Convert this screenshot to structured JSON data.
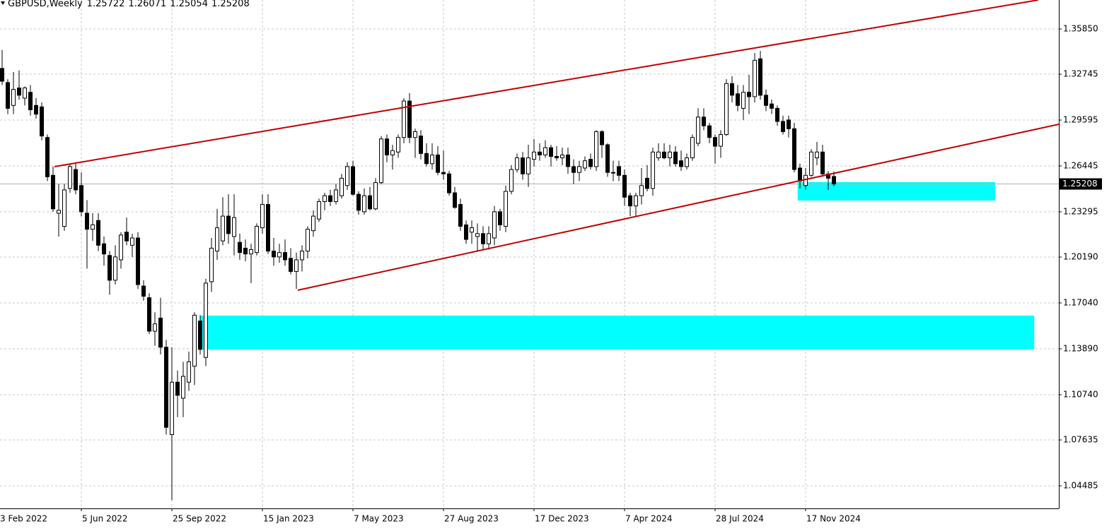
{
  "chart_data": {
    "type": "candlestick",
    "title": "GBPUSD,Weekly",
    "open": [
      1.3314,
      1.3217,
      1.306,
      1.318,
      1.311,
      1.315,
      1.306,
      1.305,
      1.284,
      1.258,
      1.232,
      1.223,
      1.249,
      1.262,
      1.251,
      1.232,
      1.221,
      1.227,
      1.211,
      1.203,
      1.186,
      1.2,
      1.219,
      1.21,
      1.215,
      1.182,
      1.174,
      1.151,
      1.16,
      1.14,
      1.08,
      1.116,
      1.105,
      1.116,
      1.127,
      1.158,
      1.133,
      1.185,
      1.206,
      1.213,
      1.23,
      1.216,
      1.212,
      1.208,
      1.204,
      1.205,
      1.222,
      1.238,
      1.206,
      1.202,
      1.205,
      1.201,
      1.192,
      1.2,
      1.206,
      1.22,
      1.228,
      1.24,
      1.244,
      1.24,
      1.244,
      1.251,
      1.264,
      1.245,
      1.233,
      1.244,
      1.235,
      1.253,
      1.283,
      1.272,
      1.274,
      1.284,
      1.309,
      1.284,
      1.285,
      1.273,
      1.266,
      1.272,
      1.26,
      1.259,
      1.246,
      1.238,
      1.224,
      1.219,
      1.216,
      1.218,
      1.211,
      1.215,
      1.233,
      1.223,
      1.247,
      1.262,
      1.27,
      1.259,
      1.269,
      1.274,
      1.272,
      1.277,
      1.271,
      1.27,
      1.272,
      1.264,
      1.26,
      1.263,
      1.269,
      1.264,
      1.288,
      1.279,
      1.26,
      1.264,
      1.258,
      1.244,
      1.237,
      1.244,
      1.256,
      1.249,
      1.27,
      1.274,
      1.27,
      1.274,
      1.268,
      1.264,
      1.27,
      1.28,
      1.298,
      1.292,
      1.284,
      1.278,
      1.286,
      1.321,
      1.314,
      1.304,
      1.315,
      1.312,
      1.338,
      1.313,
      1.307,
      1.304,
      1.295,
      1.296,
      1.29,
      1.263,
      1.251,
      1.258,
      1.27,
      1.274,
      1.259,
      1.25722
    ],
    "high": [
      1.344,
      1.324,
      1.329,
      1.33,
      1.319,
      1.32,
      1.311,
      1.308,
      1.286,
      1.264,
      1.252,
      1.252,
      1.266,
      1.267,
      1.26,
      1.241,
      1.232,
      1.232,
      1.216,
      1.206,
      1.21,
      1.219,
      1.229,
      1.218,
      1.219,
      1.186,
      1.177,
      1.164,
      1.174,
      1.145,
      1.14,
      1.124,
      1.13,
      1.137,
      1.164,
      1.162,
      1.187,
      1.215,
      1.235,
      1.243,
      1.245,
      1.245,
      1.218,
      1.214,
      1.211,
      1.225,
      1.245,
      1.245,
      1.215,
      1.211,
      1.214,
      1.208,
      1.205,
      1.21,
      1.223,
      1.234,
      1.242,
      1.246,
      1.248,
      1.252,
      1.259,
      1.267,
      1.268,
      1.247,
      1.249,
      1.25,
      1.256,
      1.285,
      1.286,
      1.279,
      1.286,
      1.311,
      1.3145,
      1.29,
      1.289,
      1.28,
      1.28,
      1.278,
      1.275,
      1.261,
      1.25,
      1.242,
      1.227,
      1.227,
      1.225,
      1.223,
      1.223,
      1.237,
      1.235,
      1.251,
      1.265,
      1.273,
      1.274,
      1.279,
      1.283,
      1.28,
      1.282,
      1.279,
      1.278,
      1.277,
      1.277,
      1.269,
      1.268,
      1.271,
      1.273,
      1.289,
      1.289,
      1.28,
      1.268,
      1.268,
      1.262,
      1.246,
      1.246,
      1.263,
      1.265,
      1.277,
      1.28,
      1.28,
      1.279,
      1.278,
      1.275,
      1.273,
      1.286,
      1.304,
      1.304,
      1.294,
      1.286,
      1.289,
      1.324,
      1.326,
      1.32,
      1.32,
      1.327,
      1.342,
      1.3434,
      1.317,
      1.31,
      1.306,
      1.299,
      1.299,
      1.294,
      1.266,
      1.263,
      1.276,
      1.281,
      1.279,
      1.261,
      1.26071
    ],
    "low": [
      1.32,
      1.3,
      1.3,
      1.31,
      1.306,
      1.299,
      1.297,
      1.282,
      1.254,
      1.233,
      1.216,
      1.22,
      1.246,
      1.245,
      1.23,
      1.194,
      1.213,
      1.206,
      1.196,
      1.176,
      1.183,
      1.194,
      1.21,
      1.202,
      1.18,
      1.172,
      1.149,
      1.141,
      1.135,
      1.08,
      1.035,
      1.092,
      1.092,
      1.11,
      1.114,
      1.135,
      1.127,
      1.178,
      1.2,
      1.21,
      1.211,
      1.203,
      1.2,
      1.199,
      1.184,
      1.203,
      1.218,
      1.204,
      1.196,
      1.198,
      1.196,
      1.19,
      1.18,
      1.192,
      1.201,
      1.216,
      1.226,
      1.234,
      1.237,
      1.238,
      1.242,
      1.248,
      1.244,
      1.231,
      1.231,
      1.234,
      1.234,
      1.252,
      1.267,
      1.262,
      1.27,
      1.28,
      1.28,
      1.27,
      1.269,
      1.264,
      1.262,
      1.258,
      1.255,
      1.244,
      1.235,
      1.22,
      1.211,
      1.211,
      1.206,
      1.207,
      1.207,
      1.21,
      1.22,
      1.219,
      1.245,
      1.26,
      1.255,
      1.25,
      1.264,
      1.268,
      1.27,
      1.264,
      1.268,
      1.265,
      1.259,
      1.252,
      1.254,
      1.261,
      1.262,
      1.261,
      1.27,
      1.257,
      1.254,
      1.254,
      1.237,
      1.23,
      1.23,
      1.238,
      1.247,
      1.244,
      1.268,
      1.269,
      1.264,
      1.264,
      1.261,
      1.262,
      1.268,
      1.278,
      1.289,
      1.28,
      1.266,
      1.27,
      1.285,
      1.308,
      1.302,
      1.296,
      1.3,
      1.308,
      1.31,
      1.302,
      1.3,
      1.292,
      1.286,
      1.284,
      1.26,
      1.249,
      1.248,
      1.257,
      1.265,
      1.257,
      1.248,
      1.25054
    ],
    "close": [
      1.3226,
      1.304,
      1.317,
      1.313,
      1.318,
      1.303,
      1.3,
      1.285,
      1.257,
      1.235,
      1.234,
      1.248,
      1.264,
      1.248,
      1.233,
      1.221,
      1.224,
      1.21,
      1.204,
      1.186,
      1.202,
      1.217,
      1.213,
      1.215,
      1.183,
      1.175,
      1.151,
      1.156,
      1.14,
      1.085,
      1.116,
      1.107,
      1.12,
      1.13,
      1.162,
      1.1385,
      1.184,
      1.208,
      1.222,
      1.23,
      1.218,
      1.229,
      1.205,
      1.204,
      1.207,
      1.223,
      1.238,
      1.206,
      1.202,
      1.205,
      1.2,
      1.192,
      1.2,
      1.206,
      1.221,
      1.23,
      1.24,
      1.244,
      1.24,
      1.248,
      1.256,
      1.264,
      1.245,
      1.234,
      1.244,
      1.235,
      1.253,
      1.283,
      1.272,
      1.275,
      1.284,
      1.309,
      1.284,
      1.288,
      1.273,
      1.266,
      1.272,
      1.26,
      1.259,
      1.246,
      1.236,
      1.223,
      1.214,
      1.222,
      1.218,
      1.211,
      1.218,
      1.233,
      1.224,
      1.247,
      1.262,
      1.27,
      1.259,
      1.27,
      1.274,
      1.272,
      1.277,
      1.271,
      1.27,
      1.272,
      1.264,
      1.26,
      1.264,
      1.268,
      1.264,
      1.288,
      1.279,
      1.26,
      1.26,
      1.258,
      1.243,
      1.237,
      1.244,
      1.251,
      1.249,
      1.274,
      1.274,
      1.27,
      1.274,
      1.266,
      1.264,
      1.27,
      1.284,
      1.298,
      1.292,
      1.284,
      1.278,
      1.286,
      1.321,
      1.313,
      1.306,
      1.315,
      1.312,
      1.337,
      1.313,
      1.306,
      1.304,
      1.295,
      1.288,
      1.29,
      1.262,
      1.254,
      1.258,
      1.274,
      1.274,
      1.259,
      1.256,
      1.25208
    ],
    "xlim": [
      -0.375,
      186.75
    ],
    "xticks": [
      {
        "value": -2,
        "label": "3 Feb 2022"
      },
      {
        "value": 14,
        "label": "5 Jun 2022"
      },
      {
        "value": 30,
        "label": "25 Sep 2022"
      },
      {
        "value": 46,
        "label": "15 Jan 2023"
      },
      {
        "value": 62,
        "label": "7 May 2023"
      },
      {
        "value": 78,
        "label": "27 Aug 2023"
      },
      {
        "value": 94,
        "label": "17 Dec 2023"
      },
      {
        "value": 110,
        "label": "7 Apr 2024"
      },
      {
        "value": 126,
        "label": "28 Jul 2024"
      },
      {
        "value": 142,
        "label": "17 Nov 2024"
      }
    ],
    "ylim": [
      1.02934,
      1.37837
    ],
    "yticks": [
      {
        "value": 1.3585,
        "label": "1.35850"
      },
      1.32745,
      1.29595,
      1.26445,
      1.23295,
      {
        "value": 1.2019,
        "label": "1.20190"
      },
      {
        "value": 1.1704,
        "label": "1.17040"
      },
      {
        "value": 1.1389,
        "label": "1.13890"
      },
      {
        "value": 1.1074,
        "label": "1.10740"
      },
      1.07635,
      1.04485
    ],
    "grid": true,
    "up_color": "#ffffff",
    "down_color": "#000000",
    "trendline_color": "#c00000",
    "trendlines": [
      {
        "x": [
          9.25,
          183.1
        ],
        "y": [
          1.26397,
          1.37837
        ]
      },
      {
        "x": [
          52.25,
          186.75
        ],
        "y": [
          1.17915,
          1.29306
        ]
      }
    ],
    "zone_color": "#00ffff",
    "zones": [
      {
        "x": [
          140.6,
          175.5
        ],
        "y": [
          1.2407,
          1.25331
        ]
      },
      {
        "x": [
          35,
          182.4
        ],
        "y": [
          1.13843,
          1.1617
        ]
      }
    ]
  }
}
